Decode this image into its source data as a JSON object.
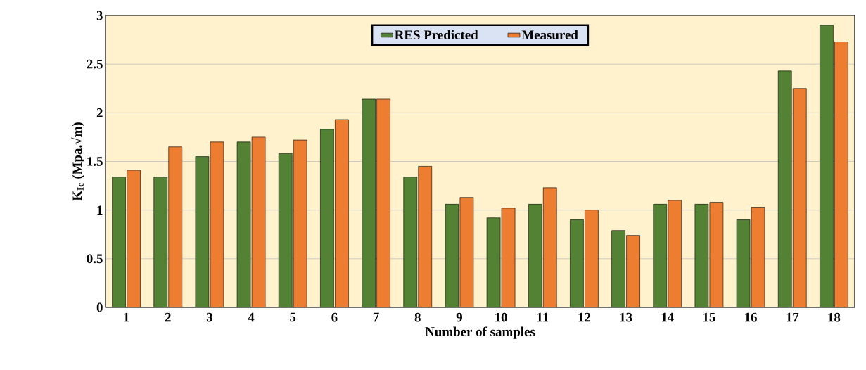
{
  "chart_data": {
    "type": "bar",
    "xlabel": "Number of samples",
    "ylabel": "K$_{Ic}$ (Mpa.√m)",
    "categories": [
      "1",
      "2",
      "3",
      "4",
      "5",
      "6",
      "7",
      "8",
      "9",
      "10",
      "11",
      "12",
      "13",
      "14",
      "15",
      "16",
      "17",
      "18"
    ],
    "series": [
      {
        "name": "RES Predicted",
        "color": "#548235",
        "values": [
          1.34,
          1.34,
          1.55,
          1.7,
          1.58,
          1.83,
          2.14,
          1.34,
          1.06,
          0.92,
          1.06,
          0.9,
          0.79,
          1.06,
          1.06,
          0.9,
          2.43,
          2.9
        ]
      },
      {
        "name": "Measured",
        "color": "#ed7d31",
        "values": [
          1.41,
          1.65,
          1.7,
          1.75,
          1.72,
          1.93,
          2.14,
          1.45,
          1.13,
          1.02,
          1.23,
          1.0,
          0.74,
          1.1,
          1.08,
          1.03,
          2.25,
          2.73
        ]
      }
    ],
    "ylim": [
      0,
      3
    ],
    "yticks": [
      0,
      0.5,
      1,
      1.5,
      2,
      2.5,
      3
    ],
    "grid": "y",
    "legend": "top"
  }
}
